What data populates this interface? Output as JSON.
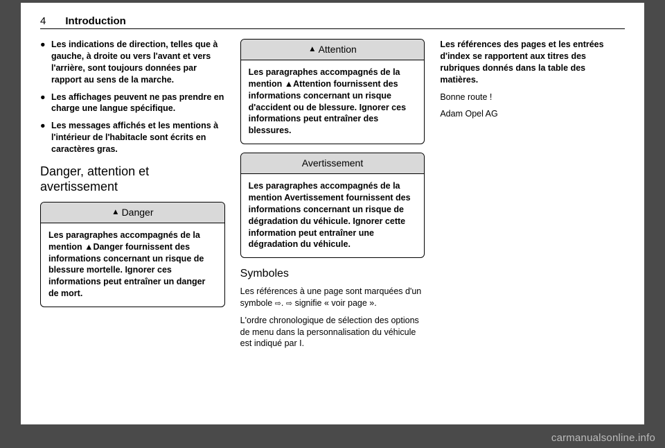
{
  "header": {
    "page_number": "4",
    "chapter": "Introduction"
  },
  "col1": {
    "bullets": [
      "Les indications de direction, telles que à gauche, à droite ou vers l'avant et vers l'arrière, sont toujours données par rapport au sens de la marche.",
      "Les affichages peuvent ne pas prendre en charge une langue spécifique.",
      "Les messages affichés et les mentions à l'intérieur de l'habita­cle sont écrits en caractères gras."
    ],
    "heading": "Danger, attention et avertissement",
    "danger": {
      "title": "Danger",
      "body": "Les paragraphes accompagnés de la mention ▲Danger fournis­sent des informations concernant un risque de blessure mortelle. Ignorer ces informations peut entraîner un danger de mort."
    }
  },
  "col2": {
    "attention": {
      "title": "Attention",
      "body": "Les paragraphes accompagnés de la mention ▲Attention fournis­sent des informations concernant un risque d'accident ou de bles­sure. Ignorer ces informations peut entraîner des blessures."
    },
    "avert": {
      "title": "Avertissement",
      "body": "Les paragraphes accompagnés de la mention Avertissement four­nissent des informations concer­nant un risque de dégradation du véhicule. Ignorer cette information peut entraîner une dégradation du véhicule."
    },
    "symbols_heading": "Symboles",
    "symbols_p1a": "Les références à une page sont marquées d'un symbole ",
    "symbols_p1b": ". ",
    "symbols_p1c": " signifie « voir page ».",
    "symbols_p2": "L'ordre chronologique de sélection des options de menu dans la person­nalisation du véhicule est indiqué par I."
  },
  "col3": {
    "p1": "Les références des pages et les entrées d'index se rapportent aux titres des rubriques donnés dans la table des matières.",
    "p2": "Bonne route !",
    "p3": "Adam Opel AG"
  },
  "watermark": "carmanualsonline.info",
  "icons": {
    "bullet": "●",
    "triangle": "▲",
    "arrow": "⇨"
  },
  "colors": {
    "page_bg": "#ffffff",
    "outer_bg": "#4a4a4a",
    "callout_header_bg": "#d9d9d9",
    "border": "#000000",
    "watermark": "#bcbcbc"
  }
}
